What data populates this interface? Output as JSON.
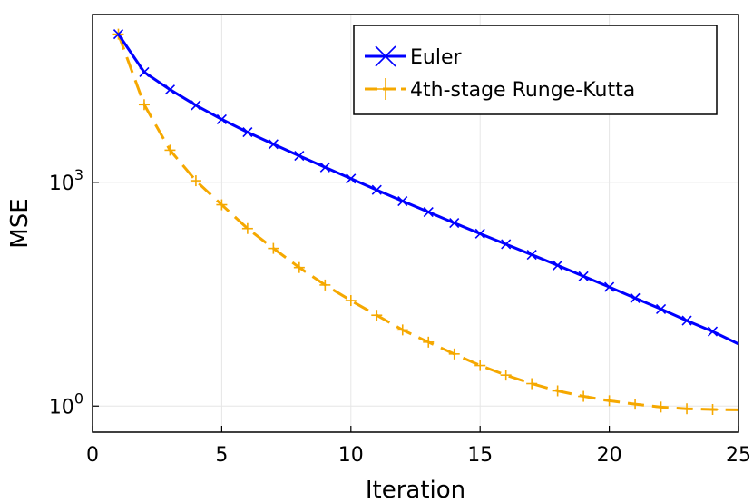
{
  "chart_data": {
    "type": "line",
    "title": "",
    "xlabel": "Iteration",
    "ylabel": "MSE",
    "xlim": [
      0,
      25
    ],
    "ylim_log10": [
      -0.35,
      5.25
    ],
    "y_scale": "log",
    "x_ticks": [
      "0",
      "5",
      "10",
      "15",
      "20",
      "25"
    ],
    "y_ticks": [
      {
        "base": "10",
        "exp": "3",
        "value": 1000
      },
      {
        "base": "10",
        "exp": "0",
        "value": 1
      }
    ],
    "grid": true,
    "legend_position": "top-right",
    "x": [
      1,
      2,
      3,
      4,
      5,
      6,
      7,
      8,
      9,
      10,
      11,
      12,
      13,
      14,
      15,
      16,
      17,
      18,
      19,
      20,
      21,
      22,
      23,
      24,
      25
    ],
    "series": [
      {
        "name": "Euler",
        "color": "#0000ff",
        "marker": "x",
        "style": "solid",
        "values": [
          97000,
          30000,
          17500,
          10800,
          7000,
          4700,
          3250,
          2270,
          1590,
          1120,
          790,
          560,
          400,
          285,
          205,
          148,
          107,
          77,
          55,
          39.5,
          28,
          20,
          14,
          10,
          6.8
        ]
      },
      {
        "name": "4th-stage Runge-Kutta",
        "color": "#f5a800",
        "marker": "+",
        "style": "dashed",
        "values": [
          97000,
          11000,
          2700,
          1050,
          500,
          240,
          130,
          72,
          42,
          26,
          16.5,
          10.5,
          7.2,
          5.0,
          3.5,
          2.6,
          2.0,
          1.6,
          1.35,
          1.18,
          1.06,
          0.97,
          0.92,
          0.9,
          0.89
        ]
      }
    ]
  }
}
